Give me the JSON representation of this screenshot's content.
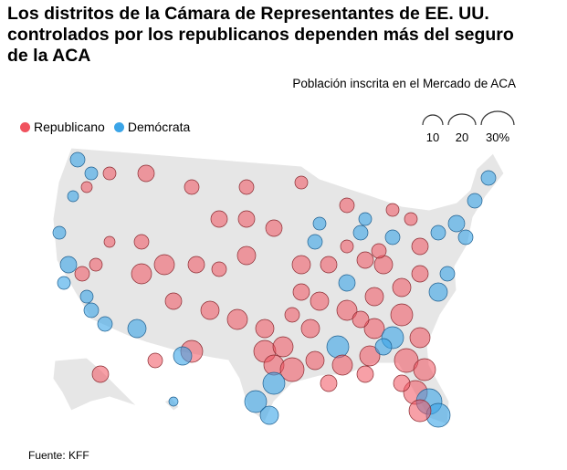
{
  "title": "Los distritos de la Cámara de Representantes de EE. UU. controlados por los republicanos dependen más del seguro de la ACA",
  "legend": {
    "size_title": "Población inscrita en el Mercado de ACA",
    "sizes": [
      {
        "label": "10",
        "value": 10
      },
      {
        "label": "20",
        "value": 20
      },
      {
        "label": "30%",
        "value": 30
      }
    ],
    "parties": [
      {
        "label": "Republicano",
        "color": "#f0525e"
      },
      {
        "label": "Demócrata",
        "color": "#3ba5e8"
      }
    ]
  },
  "source": "Fuente: KFF"
}
